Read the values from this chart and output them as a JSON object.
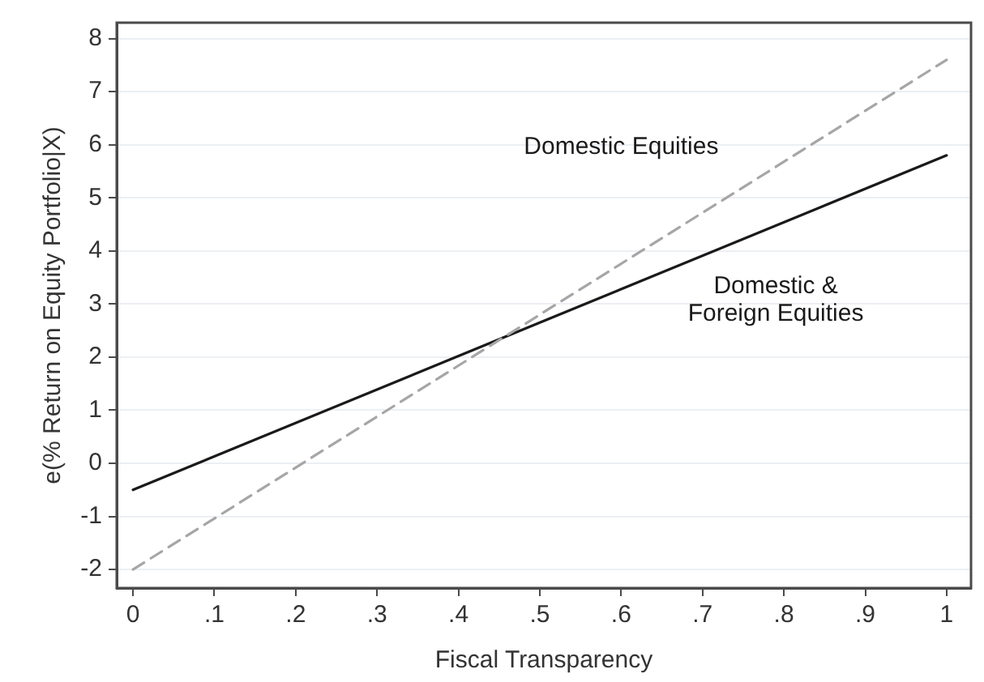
{
  "chart_data": {
    "type": "line",
    "xlabel": "Fiscal Transparency",
    "ylabel": "e(% Return on Equity Portfolio|X)",
    "x": [
      0,
      0.5,
      1
    ],
    "series": [
      {
        "name": "Domestic Equities",
        "color": "#a6a6a6",
        "line_style": "dashed",
        "values": [
          -2.0,
          2.8,
          7.6
        ]
      },
      {
        "name": "Domestic & Foreign Equities",
        "color": "#1a1a1a",
        "line_style": "solid",
        "values": [
          -0.5,
          2.65,
          5.8
        ]
      }
    ],
    "xlim": [
      -0.02,
      1.03
    ],
    "ylim": [
      -2.35,
      8.3
    ],
    "xticks": [
      0,
      {
        "value": 0.1,
        "label": ".1"
      },
      {
        "value": 0.2,
        "label": ".2"
      },
      {
        "value": 0.3,
        "label": ".3"
      },
      {
        "value": 0.4,
        "label": ".4"
      },
      {
        "value": 0.5,
        "label": ".5"
      },
      {
        "value": 0.6,
        "label": ".6"
      },
      {
        "value": 0.7,
        "label": ".7"
      },
      {
        "value": 0.8,
        "label": ".8"
      },
      {
        "value": 0.9,
        "label": ".9"
      },
      1
    ],
    "yticks": [
      -2,
      -1,
      0,
      1,
      2,
      3,
      4,
      5,
      6,
      7,
      8
    ],
    "grid": "y",
    "legend": false,
    "marker": "none"
  }
}
